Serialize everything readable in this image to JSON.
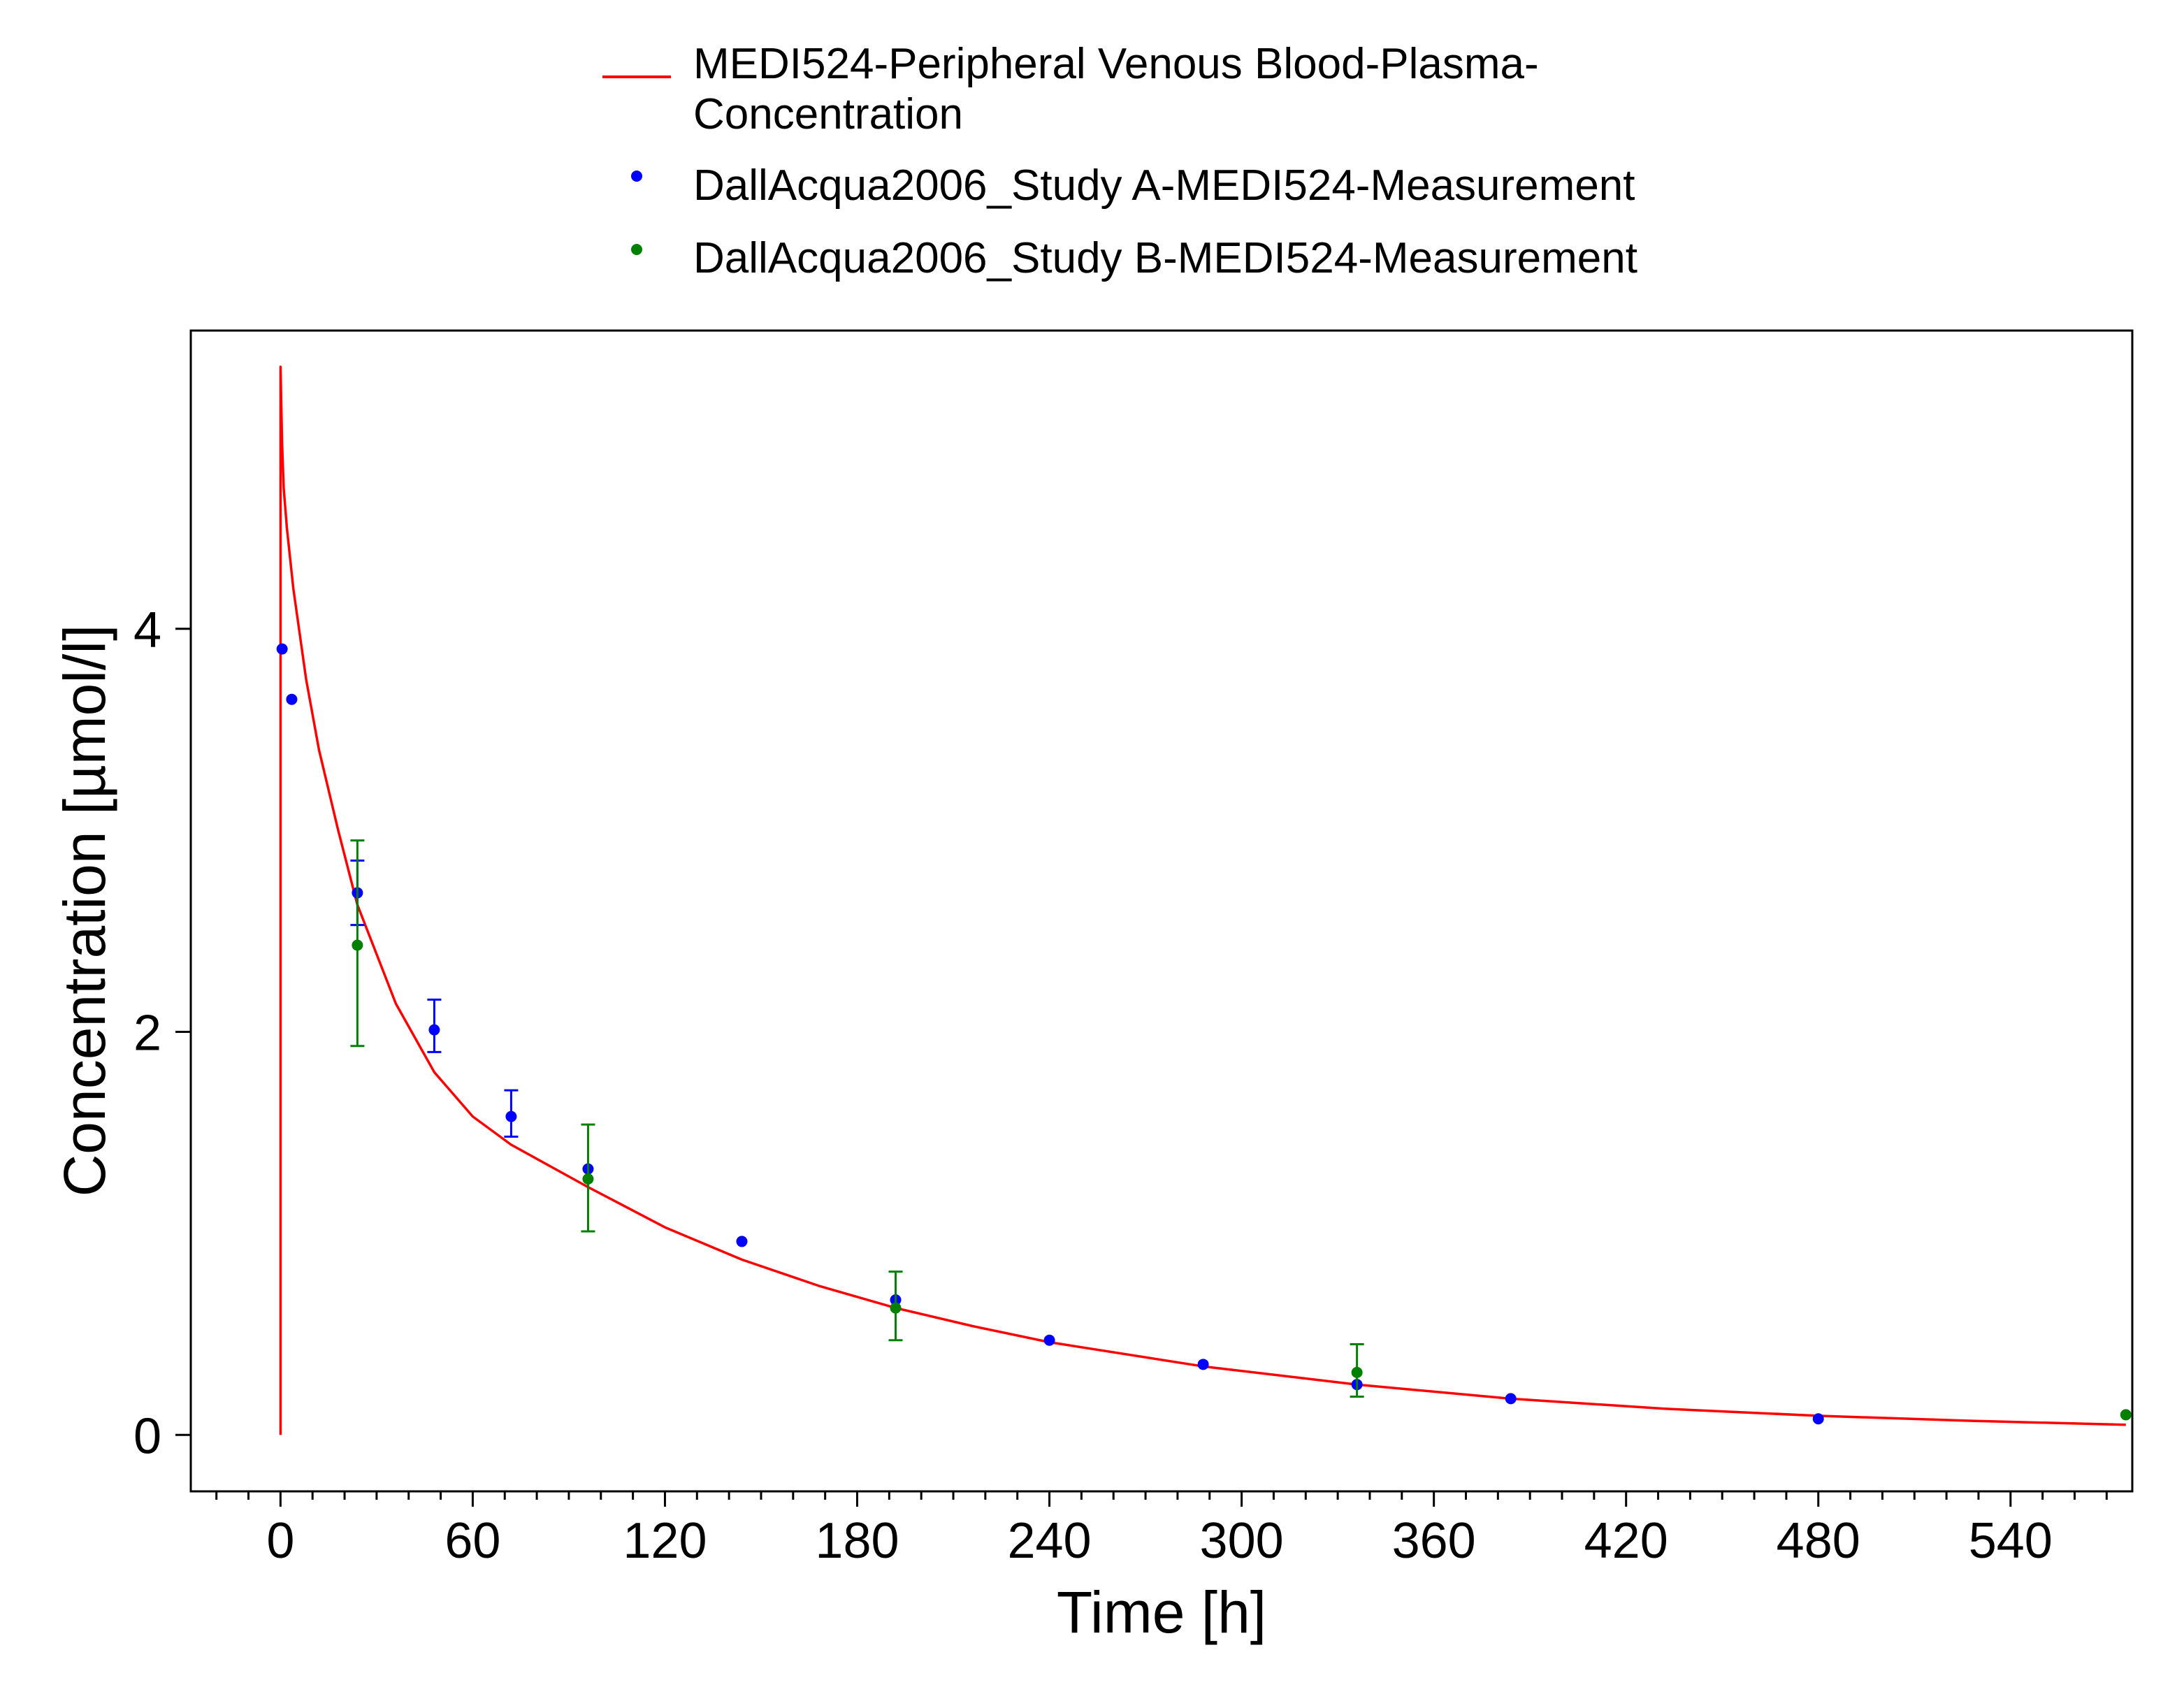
{
  "chart_data": {
    "type": "scatter",
    "xlabel": "Time [h]",
    "ylabel": "Concentration [µmol/l]",
    "xlim": [
      -28,
      578
    ],
    "ylim": [
      -0.28,
      5.48
    ],
    "xticks": [
      0,
      60,
      120,
      180,
      240,
      300,
      360,
      420,
      480,
      540
    ],
    "yticks": [
      0,
      2,
      4
    ],
    "x_minor_step": 10,
    "grid": false,
    "legend_position": "top",
    "series": [
      {
        "name": "MEDI524-Peripheral Venous Blood-Plasma-Concentration",
        "legend_lines": [
          "MEDI524-Peripheral Venous Blood-Plasma-",
          "Concentration"
        ],
        "kind": "line",
        "color": "#ff0000",
        "points": [
          {
            "x": 0,
            "y": 0
          },
          {
            "x": 0,
            "y": 5.3
          },
          {
            "x": 0.5,
            "y": 4.92
          },
          {
            "x": 1,
            "y": 4.7
          },
          {
            "x": 2,
            "y": 4.5
          },
          {
            "x": 4,
            "y": 4.2
          },
          {
            "x": 8,
            "y": 3.75
          },
          {
            "x": 12,
            "y": 3.4
          },
          {
            "x": 18,
            "y": 3.0
          },
          {
            "x": 24,
            "y": 2.63
          },
          {
            "x": 36,
            "y": 2.14
          },
          {
            "x": 48,
            "y": 1.8
          },
          {
            "x": 60,
            "y": 1.58
          },
          {
            "x": 72,
            "y": 1.44
          },
          {
            "x": 96,
            "y": 1.23
          },
          {
            "x": 120,
            "y": 1.03
          },
          {
            "x": 144,
            "y": 0.87
          },
          {
            "x": 168,
            "y": 0.74
          },
          {
            "x": 192,
            "y": 0.63
          },
          {
            "x": 216,
            "y": 0.54
          },
          {
            "x": 240,
            "y": 0.46
          },
          {
            "x": 288,
            "y": 0.34
          },
          {
            "x": 336,
            "y": 0.25
          },
          {
            "x": 384,
            "y": 0.18
          },
          {
            "x": 432,
            "y": 0.13
          },
          {
            "x": 480,
            "y": 0.095
          },
          {
            "x": 528,
            "y": 0.07
          },
          {
            "x": 576,
            "y": 0.05
          }
        ]
      },
      {
        "name": "DallAcqua2006_Study A-MEDI524-Measurement",
        "kind": "points",
        "color": "#0000ff",
        "points": [
          {
            "x": 0.5,
            "y": 3.9
          },
          {
            "x": 3.5,
            "y": 3.65
          },
          {
            "x": 24,
            "y": 2.69,
            "err_low": 2.53,
            "err_high": 2.85
          },
          {
            "x": 48,
            "y": 2.01,
            "err_low": 1.9,
            "err_high": 2.16
          },
          {
            "x": 72,
            "y": 1.58,
            "err_low": 1.48,
            "err_high": 1.71
          },
          {
            "x": 96,
            "y": 1.32
          },
          {
            "x": 144,
            "y": 0.96
          },
          {
            "x": 192,
            "y": 0.67
          },
          {
            "x": 240,
            "y": 0.47
          },
          {
            "x": 288,
            "y": 0.35
          },
          {
            "x": 336,
            "y": 0.25
          },
          {
            "x": 384,
            "y": 0.18
          },
          {
            "x": 480,
            "y": 0.08
          }
        ]
      },
      {
        "name": "DallAcqua2006_Study B-MEDI524-Measurement",
        "kind": "points",
        "color": "#008000",
        "points": [
          {
            "x": 24,
            "y": 2.43,
            "err_low": 1.93,
            "err_high": 2.95
          },
          {
            "x": 96,
            "y": 1.27,
            "err_low": 1.01,
            "err_high": 1.54
          },
          {
            "x": 192,
            "y": 0.63,
            "err_low": 0.47,
            "err_high": 0.81
          },
          {
            "x": 336,
            "y": 0.31,
            "err_low": 0.19,
            "err_high": 0.45
          },
          {
            "x": 576,
            "y": 0.1
          }
        ]
      }
    ]
  }
}
